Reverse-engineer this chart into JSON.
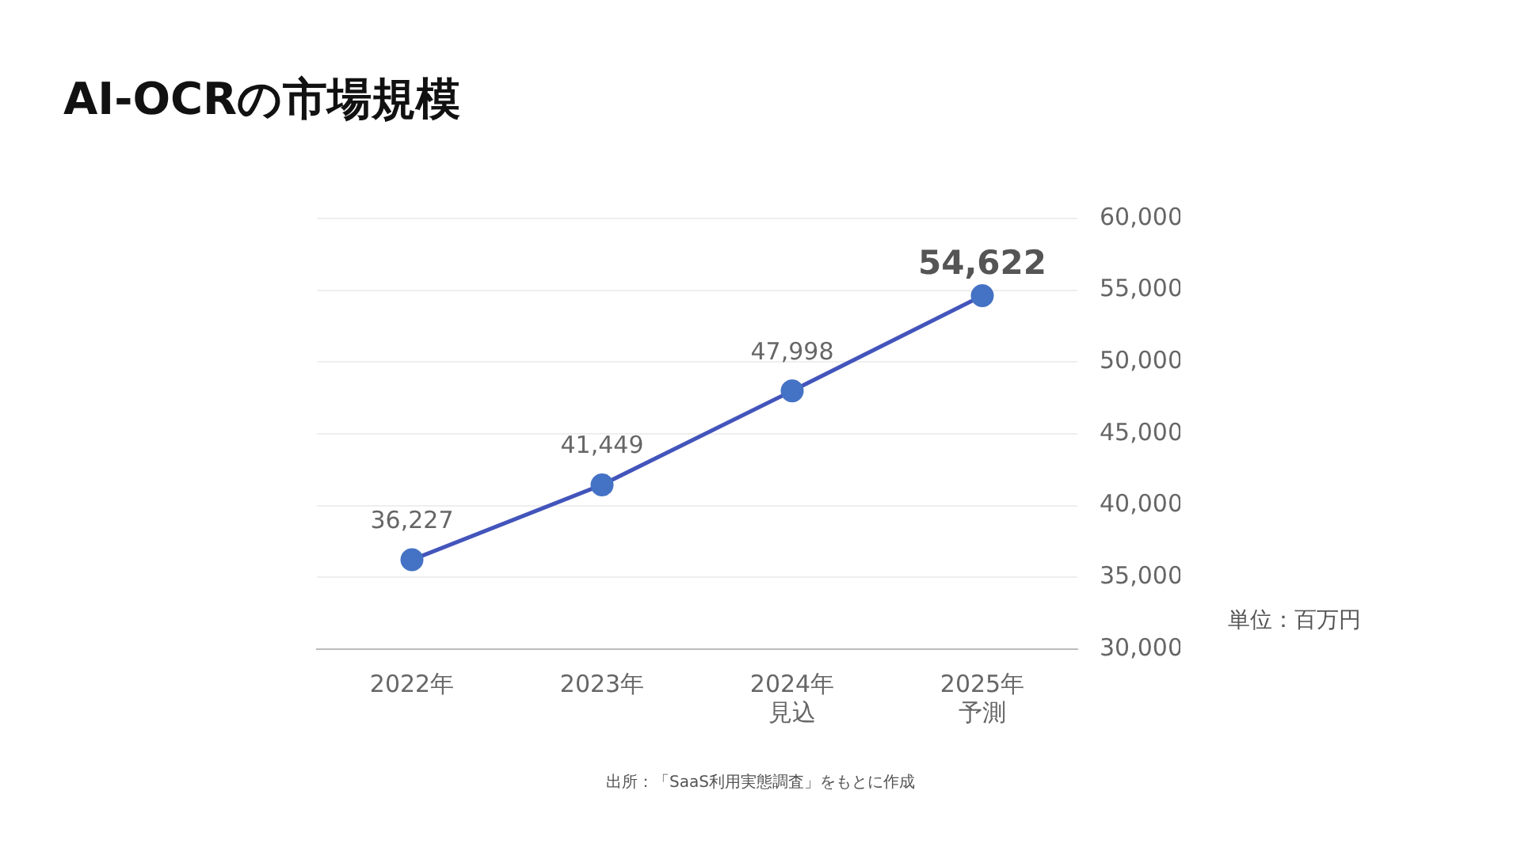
{
  "chart_data": {
    "type": "line",
    "title": "AI-OCRの市場規模",
    "categories": [
      "2022年",
      "2023年",
      "2024年見込",
      "2025年予測"
    ],
    "series": [
      {
        "color": "#4355bb",
        "values": [
          36227,
          41449,
          47998,
          54622
        ],
        "value_labels": [
          "36,227",
          "41,449",
          "47,998",
          "54,622"
        ]
      }
    ],
    "ylim": [
      30000,
      60000
    ],
    "yticks": [
      {
        "value": 30000,
        "label": "30,000"
      },
      {
        "value": 35000,
        "label": "35,000"
      },
      {
        "value": 40000,
        "label": "40,000"
      },
      {
        "value": 45000,
        "label": "45,000"
      },
      {
        "value": 50000,
        "label": "50,000"
      },
      {
        "value": 55000,
        "label": "55,000"
      },
      {
        "value": 60000,
        "label": "60,000"
      }
    ],
    "grid": "y",
    "marker": "circle",
    "line_style": "solid",
    "legend": false,
    "annotations": [
      "単位：百万円",
      "出所：「SaaS利用実態調査」をもとに作成"
    ]
  }
}
